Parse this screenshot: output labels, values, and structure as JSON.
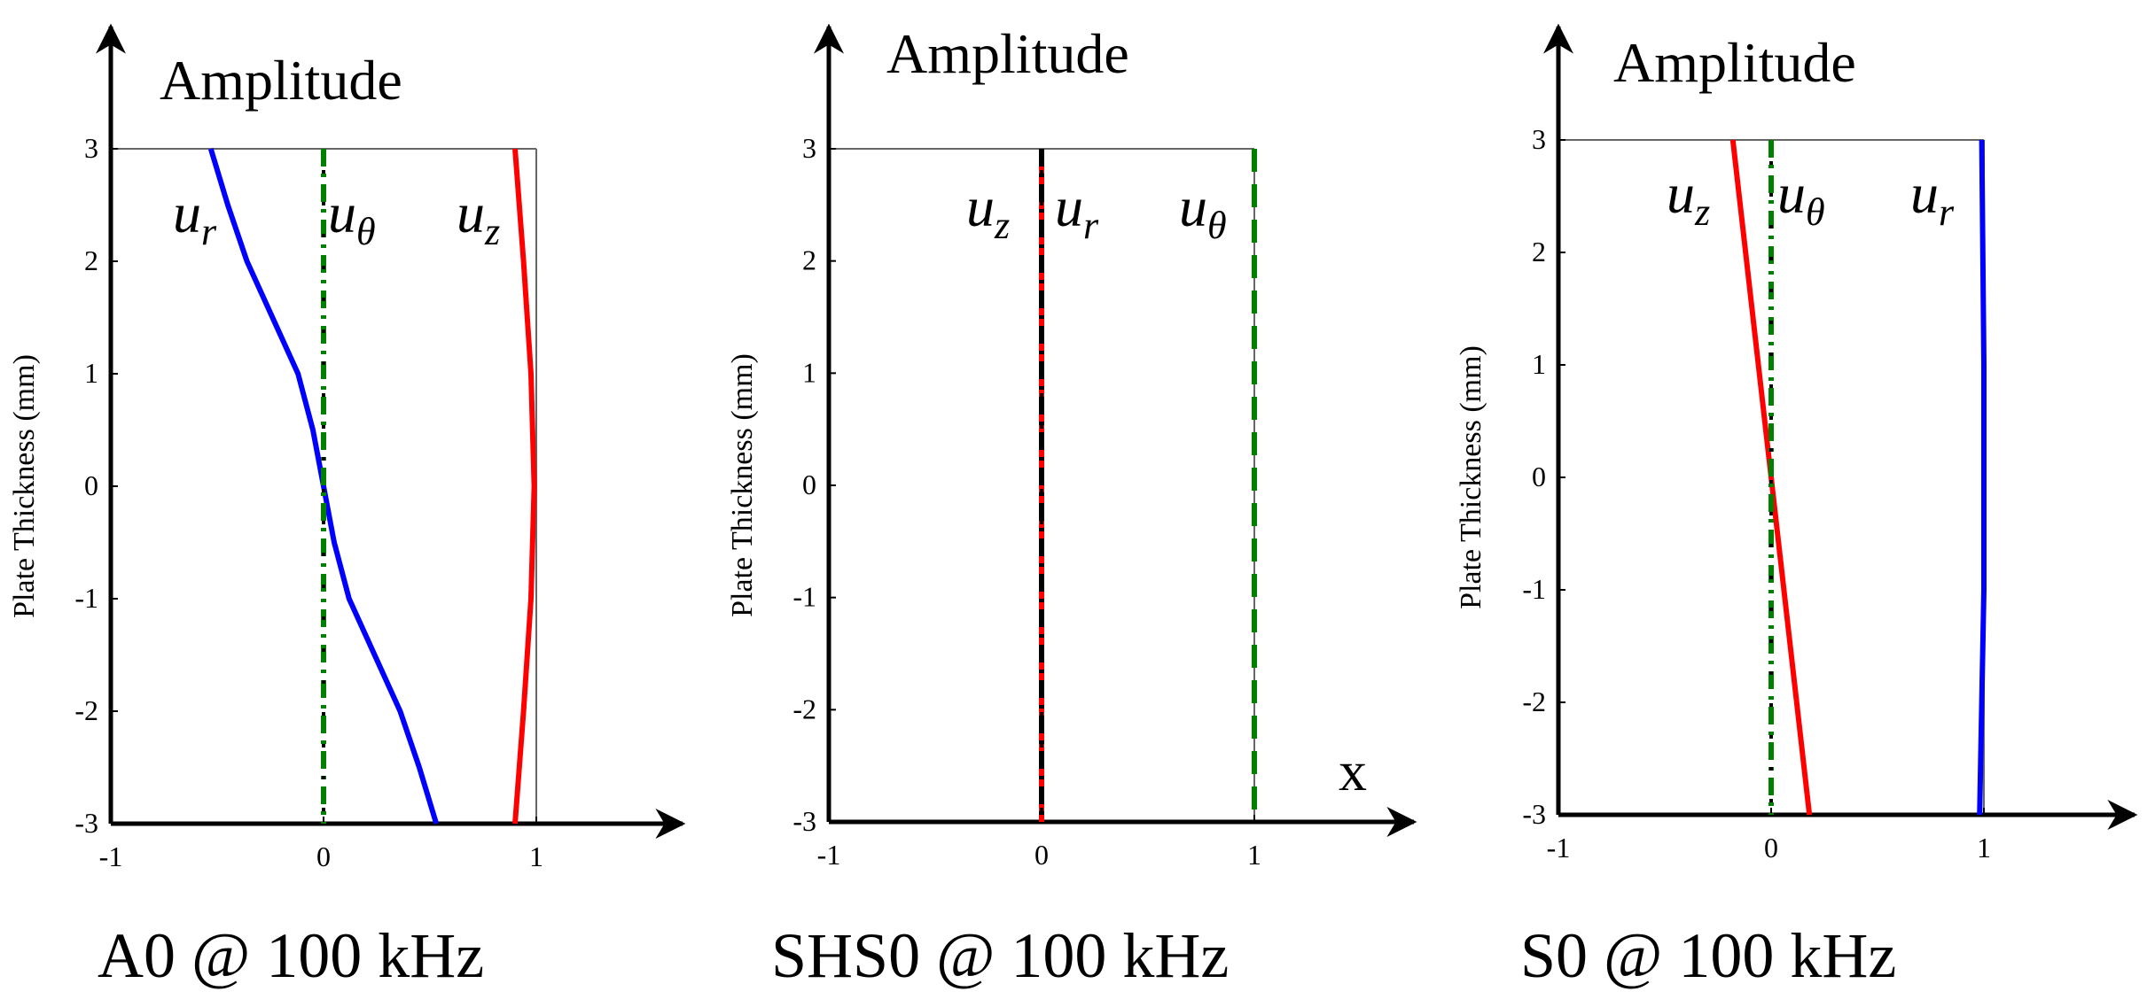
{
  "chart_data": [
    {
      "type": "line",
      "title": "Amplitude",
      "caption": "A0 @ 100 kHz",
      "ylabel": "Plate Thickness (mm)",
      "xlabel": "",
      "xlim": [
        -1,
        1
      ],
      "ylim": [
        -3,
        3
      ],
      "xticks": [
        "-1",
        "0",
        "1"
      ],
      "yticks": [
        "3",
        "2",
        "1",
        "0",
        "-1",
        "-2",
        "-3"
      ],
      "series": [
        {
          "name": "u_r",
          "label": "u",
          "sub": "r",
          "color": "#0000ff",
          "style": "solid",
          "points": [
            [
              -0.53,
              3
            ],
            [
              -0.45,
              2.5
            ],
            [
              -0.36,
              2
            ],
            [
              -0.24,
              1.5
            ],
            [
              -0.12,
              1
            ],
            [
              -0.05,
              0.5
            ],
            [
              0,
              0
            ],
            [
              0.05,
              -0.5
            ],
            [
              0.12,
              -1
            ],
            [
              0.24,
              -1.5
            ],
            [
              0.36,
              -2
            ],
            [
              0.45,
              -2.5
            ],
            [
              0.53,
              -3
            ]
          ]
        },
        {
          "name": "u_theta",
          "label": "u",
          "sub": "θ",
          "color": "#008000",
          "style": "dashdot",
          "points": [
            [
              0,
              3
            ],
            [
              0,
              -3
            ]
          ]
        },
        {
          "name": "u_z",
          "label": "u",
          "sub": "z",
          "color": "#ff0000",
          "style": "solid",
          "points": [
            [
              0.9,
              3
            ],
            [
              0.94,
              2
            ],
            [
              0.975,
              1
            ],
            [
              0.99,
              0
            ],
            [
              0.975,
              -1
            ],
            [
              0.94,
              -2
            ],
            [
              0.9,
              -3
            ]
          ]
        }
      ]
    },
    {
      "type": "line",
      "title": "Amplitude",
      "caption": "SHS0 @ 100 kHz",
      "ylabel": "Plate Thickness (mm)",
      "xlabel": "x",
      "xlim": [
        -1,
        1
      ],
      "ylim": [
        -3,
        3
      ],
      "xticks": [
        "-1",
        "0",
        "1"
      ],
      "yticks": [
        "3",
        "2",
        "1",
        "0",
        "-1",
        "-2",
        "-3"
      ],
      "series": [
        {
          "name": "u_z",
          "label": "u",
          "sub": "z",
          "color": "#ff0000",
          "style": "solid",
          "points": [
            [
              0,
              3
            ],
            [
              0,
              -3
            ]
          ]
        },
        {
          "name": "u_r",
          "label": "u",
          "sub": "r",
          "color": "#000000",
          "style": "dashdot",
          "points": [
            [
              0,
              3
            ],
            [
              0,
              -3
            ]
          ]
        },
        {
          "name": "u_theta",
          "label": "u",
          "sub": "θ",
          "color": "#008000",
          "style": "dashed",
          "points": [
            [
              1,
              3
            ],
            [
              1,
              -3
            ]
          ]
        }
      ]
    },
    {
      "type": "line",
      "title": "Amplitude",
      "caption": "S0 @ 100 kHz",
      "ylabel": "Plate Thickness (mm)",
      "xlabel": "",
      "xlim": [
        -1,
        1
      ],
      "ylim": [
        -3,
        3
      ],
      "xticks": [
        "-1",
        "0",
        "1"
      ],
      "yticks": [
        "3",
        "2",
        "1",
        "0",
        "-1",
        "-2",
        "-3"
      ],
      "series": [
        {
          "name": "u_z",
          "label": "u",
          "sub": "z",
          "color": "#ff0000",
          "style": "solid",
          "points": [
            [
              -0.18,
              3
            ],
            [
              0.18,
              -3
            ]
          ]
        },
        {
          "name": "u_theta",
          "label": "u",
          "sub": "θ",
          "color": "#008000",
          "style": "dashdot",
          "points": [
            [
              0,
              3
            ],
            [
              0,
              -3
            ]
          ]
        },
        {
          "name": "u_r",
          "label": "u",
          "sub": "r",
          "color": "#0000ff",
          "style": "solid",
          "points": [
            [
              0.99,
              3
            ],
            [
              1.0,
              1
            ],
            [
              1.0,
              -1
            ],
            [
              0.98,
              -3
            ]
          ]
        }
      ]
    }
  ]
}
